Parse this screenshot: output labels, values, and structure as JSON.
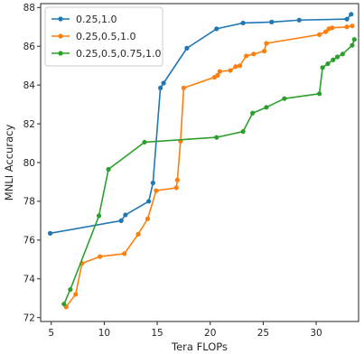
{
  "chart_data": {
    "type": "line",
    "xlabel": "Tera FLOPs",
    "ylabel": "MNLI Accuracy",
    "xlim": [
      4,
      34
    ],
    "ylim": [
      71.8,
      88.2
    ],
    "xticks": [
      5,
      10,
      15,
      20,
      25,
      30
    ],
    "yticks": [
      72,
      74,
      76,
      78,
      80,
      82,
      84,
      86,
      88
    ],
    "grid": false,
    "legend_position": "top-left",
    "series": [
      {
        "name": "0.25,1.0",
        "color": "#1f77b4",
        "points": [
          [
            4.9,
            76.35
          ],
          [
            11.6,
            77.0
          ],
          [
            12.0,
            77.3
          ],
          [
            14.2,
            78.0
          ],
          [
            14.6,
            78.95
          ],
          [
            15.3,
            83.85
          ],
          [
            15.6,
            84.1
          ],
          [
            17.8,
            85.9
          ],
          [
            20.6,
            86.9
          ],
          [
            23.1,
            87.2
          ],
          [
            25.8,
            87.25
          ],
          [
            28.4,
            87.35
          ],
          [
            32.9,
            87.4
          ],
          [
            33.3,
            87.65
          ]
        ]
      },
      {
        "name": "0.25,0.5,1.0",
        "color": "#ff7f0e",
        "points": [
          [
            6.4,
            72.55
          ],
          [
            7.3,
            73.2
          ],
          [
            7.9,
            74.8
          ],
          [
            9.6,
            75.15
          ],
          [
            11.9,
            75.3
          ],
          [
            13.2,
            76.3
          ],
          [
            14.1,
            77.1
          ],
          [
            14.9,
            78.55
          ],
          [
            16.8,
            78.7
          ],
          [
            16.9,
            79.1
          ],
          [
            17.2,
            81.1
          ],
          [
            17.5,
            83.85
          ],
          [
            20.4,
            84.4
          ],
          [
            20.7,
            84.5
          ],
          [
            20.9,
            84.7
          ],
          [
            21.9,
            84.75
          ],
          [
            22.4,
            84.95
          ],
          [
            22.8,
            85.0
          ],
          [
            23.4,
            85.5
          ],
          [
            24.1,
            85.6
          ],
          [
            25.1,
            85.75
          ],
          [
            25.3,
            86.15
          ],
          [
            30.3,
            86.6
          ],
          [
            30.9,
            86.75
          ],
          [
            31.2,
            86.9
          ],
          [
            31.5,
            86.95
          ],
          [
            32.9,
            87.0
          ],
          [
            33.4,
            87.05
          ]
        ]
      },
      {
        "name": "0.25,0.5,0.75,1.0",
        "color": "#2ca02c",
        "points": [
          [
            6.2,
            72.7
          ],
          [
            6.8,
            73.45
          ],
          [
            9.5,
            77.25
          ],
          [
            10.4,
            79.65
          ],
          [
            13.8,
            81.05
          ],
          [
            20.6,
            81.3
          ],
          [
            23.1,
            81.6
          ],
          [
            24.0,
            82.55
          ],
          [
            25.3,
            82.85
          ],
          [
            27.0,
            83.3
          ],
          [
            30.3,
            83.55
          ],
          [
            30.6,
            84.9
          ],
          [
            31.1,
            85.1
          ],
          [
            31.6,
            85.3
          ],
          [
            32.0,
            85.45
          ],
          [
            32.5,
            85.6
          ],
          [
            33.4,
            86.05
          ],
          [
            33.6,
            86.35
          ]
        ]
      }
    ]
  }
}
